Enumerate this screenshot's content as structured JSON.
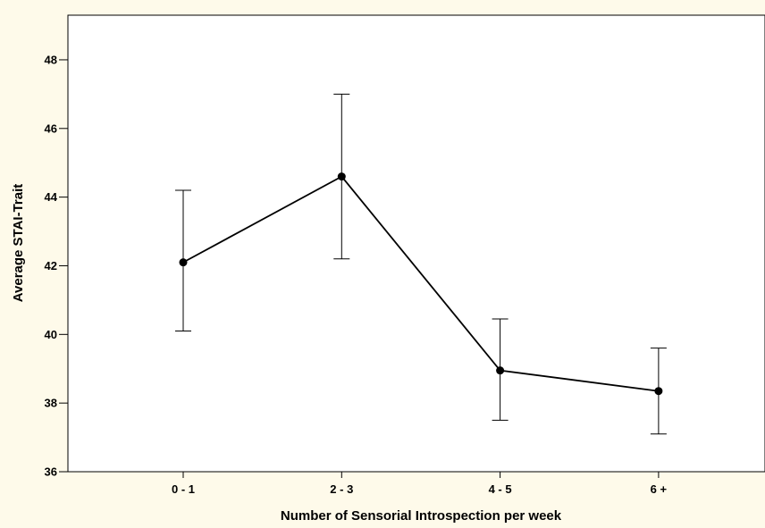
{
  "chart_data": {
    "type": "line",
    "title": "",
    "xlabel": "Number of Sensorial Introspection per week",
    "ylabel": "Average STAI-Trait",
    "categories": [
      "0 - 1",
      "2 - 3",
      "4 - 5",
      "6 +"
    ],
    "series": [
      {
        "values": [
          42.1,
          44.6,
          38.95,
          38.35
        ],
        "error_low": [
          40.1,
          42.2,
          37.5,
          37.1
        ],
        "error_high": [
          44.2,
          47.0,
          40.45,
          39.6
        ]
      }
    ],
    "ylim": [
      36,
      49.3
    ],
    "yticks": [
      36,
      38,
      40,
      42,
      44,
      46,
      48
    ],
    "grid": false,
    "legend": "none",
    "colors": {
      "background": "#fefaea",
      "plot_background": "#ffffff",
      "line": "#000000"
    }
  }
}
